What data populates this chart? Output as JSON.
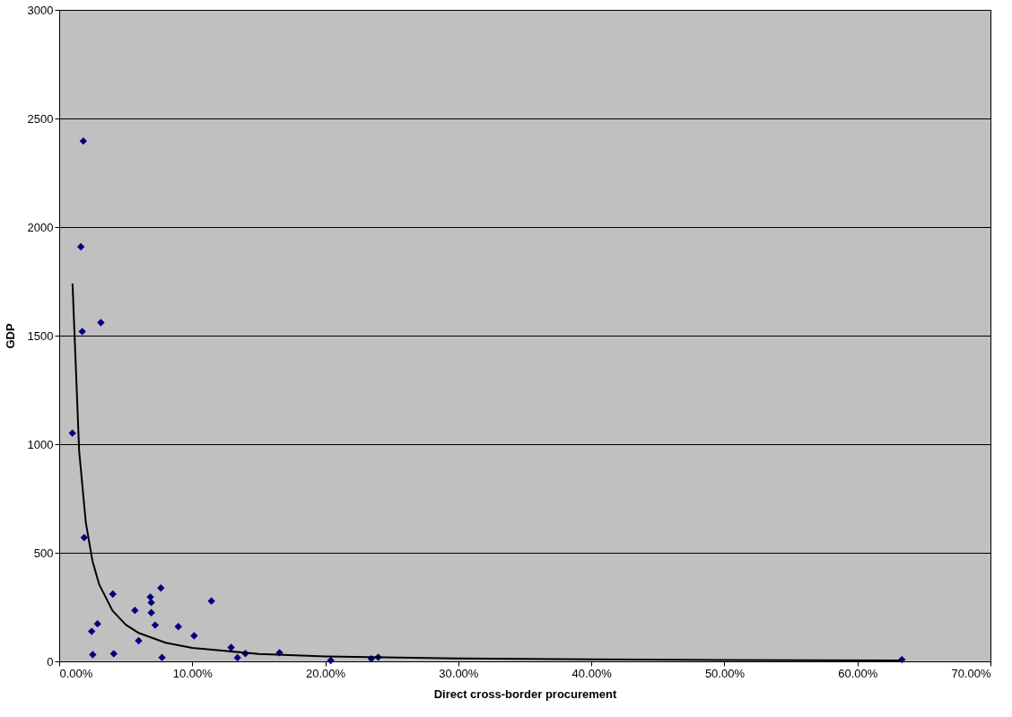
{
  "chart_data": {
    "type": "scatter",
    "xlabel": "Direct cross-border procurement",
    "ylabel": "GDP",
    "series": [
      {
        "color": "#000080",
        "marker": "diamond",
        "x": [
          1.81,
          1.63,
          1.73,
          3.13,
          0.99,
          1.88,
          4.03,
          2.44,
          2.88,
          2.52,
          4.1,
          5.69,
          5.97,
          6.85,
          6.92,
          6.92,
          7.21,
          7.64,
          7.73,
          8.95,
          10.14,
          11.44,
          12.92,
          13.4,
          13.99,
          16.56,
          20.41,
          23.46,
          23.98,
          63.34
        ],
        "values": [
          2396,
          1909,
          1519,
          1560,
          1051,
          570,
          310,
          138,
          173,
          31,
          35,
          235,
          95,
          296,
          271,
          224,
          167,
          338,
          18,
          160,
          118,
          278,
          64,
          17,
          36,
          40,
          4,
          12,
          19,
          8
        ]
      },
      {
        "type": "line",
        "color": "#000000",
        "line_style": "solid",
        "x": [
          1,
          1.5,
          2,
          2.5,
          3,
          4,
          5,
          6,
          8,
          10,
          15,
          20,
          30,
          40,
          50,
          63.3
        ],
        "values": [
          1740,
          968,
          639,
          462,
          355,
          234,
          169,
          130,
          86,
          62,
          34,
          23,
          13,
          9,
          6,
          4
        ]
      }
    ],
    "xlim": [
      0,
      70
    ],
    "xticks": [
      {
        "value": 0,
        "label": "0.00%"
      },
      {
        "value": 10,
        "label": "10.00%"
      },
      {
        "value": 20,
        "label": "20.00%"
      },
      {
        "value": 30,
        "label": "30.00%"
      },
      {
        "value": 40,
        "label": "40.00%"
      },
      {
        "value": 50,
        "label": "50.00%"
      },
      {
        "value": 60,
        "label": "60.00%"
      },
      {
        "value": 70,
        "label": "70.00%"
      }
    ],
    "ylim": [
      0,
      3000
    ],
    "yticks": [
      0,
      500,
      1000,
      1500,
      2000,
      2500,
      3000
    ],
    "grid": "y"
  }
}
